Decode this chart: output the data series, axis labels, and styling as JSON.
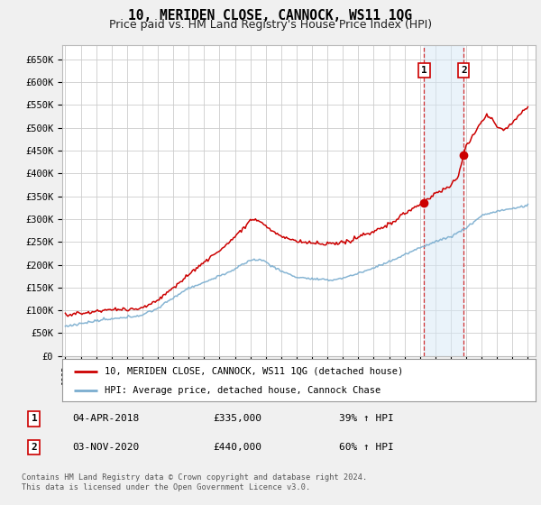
{
  "title": "10, MERIDEN CLOSE, CANNOCK, WS11 1QG",
  "subtitle": "Price paid vs. HM Land Registry's House Price Index (HPI)",
  "ylabel_ticks": [
    "£0",
    "£50K",
    "£100K",
    "£150K",
    "£200K",
    "£250K",
    "£300K",
    "£350K",
    "£400K",
    "£450K",
    "£500K",
    "£550K",
    "£600K",
    "£650K"
  ],
  "ytick_values": [
    0,
    50000,
    100000,
    150000,
    200000,
    250000,
    300000,
    350000,
    400000,
    450000,
    500000,
    550000,
    600000,
    650000
  ],
  "xmin": 1994.8,
  "xmax": 2025.5,
  "ymin": 0,
  "ymax": 680000,
  "sale1_date": 2018.27,
  "sale1_price": 335000,
  "sale1_label": "1",
  "sale2_date": 2020.84,
  "sale2_price": 440000,
  "sale2_label": "2",
  "vline_color": "#cc0000",
  "shade_color": "#d6e8f7",
  "shade_alpha": 0.5,
  "hpi_color": "#7aadcf",
  "price_color": "#cc0000",
  "background_color": "#f0f0f0",
  "plot_bg_color": "#ffffff",
  "grid_color": "#cccccc",
  "legend_label_price": "10, MERIDEN CLOSE, CANNOCK, WS11 1QG (detached house)",
  "legend_label_hpi": "HPI: Average price, detached house, Cannock Chase",
  "transaction1": [
    "1",
    "04-APR-2018",
    "£335,000",
    "39% ↑ HPI"
  ],
  "transaction2": [
    "2",
    "03-NOV-2020",
    "£440,000",
    "60% ↑ HPI"
  ],
  "footnote": "Contains HM Land Registry data © Crown copyright and database right 2024.\nThis data is licensed under the Open Government Licence v3.0.",
  "title_fontsize": 10.5,
  "subtitle_fontsize": 9
}
